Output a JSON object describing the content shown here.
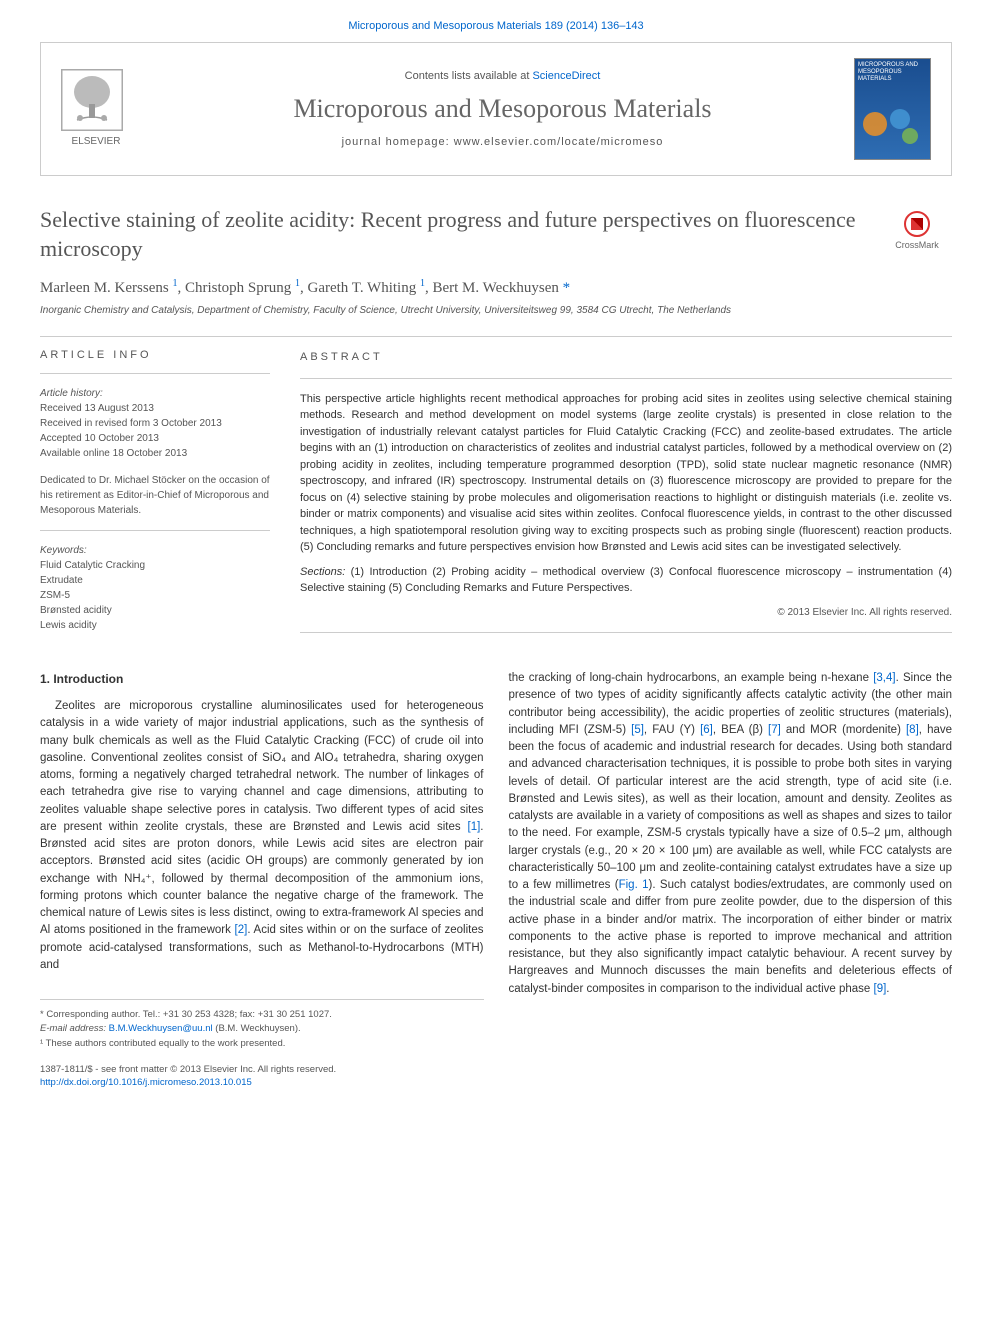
{
  "citation": "Microporous and Mesoporous Materials 189 (2014) 136–143",
  "header": {
    "contents_prefix": "Contents lists available at ",
    "contents_link": "ScienceDirect",
    "journal_name": "Microporous and Mesoporous Materials",
    "homepage_prefix": "journal homepage: ",
    "homepage_url": "www.elsevier.com/locate/micromeso",
    "publisher": "ELSEVIER",
    "cover_title": "MICROPOROUS AND MESOPOROUS MATERIALS"
  },
  "crossmark": "CrossMark",
  "title": "Selective staining of zeolite acidity: Recent progress and future perspectives on fluorescence microscopy",
  "authors_html": "Marleen M. Kerssens <sup>1</sup>, Christoph Sprung <sup>1</sup>, Gareth T. Whiting <sup>1</sup>, Bert M. Weckhuysen <span class='corr'>*</span>",
  "affiliation": "Inorganic Chemistry and Catalysis, Department of Chemistry, Faculty of Science, Utrecht University, Universiteitsweg 99, 3584 CG Utrecht, The Netherlands",
  "info": {
    "heading": "ARTICLE INFO",
    "history_label": "Article history:",
    "history": [
      "Received 13 August 2013",
      "Received in revised form 3 October 2013",
      "Accepted 10 October 2013",
      "Available online 18 October 2013"
    ],
    "dedication": "Dedicated to Dr. Michael Stöcker on the occasion of his retirement as Editor-in-Chief of Microporous and Mesoporous Materials.",
    "keywords_label": "Keywords:",
    "keywords": [
      "Fluid Catalytic Cracking",
      "Extrudate",
      "ZSM-5",
      "Brønsted acidity",
      "Lewis acidity"
    ]
  },
  "abstract": {
    "heading": "ABSTRACT",
    "text": "This perspective article highlights recent methodical approaches for probing acid sites in zeolites using selective chemical staining methods. Research and method development on model systems (large zeolite crystals) is presented in close relation to the investigation of industrially relevant catalyst particles for Fluid Catalytic Cracking (FCC) and zeolite-based extrudates. The article begins with an (1) introduction on characteristics of zeolites and industrial catalyst particles, followed by a methodical overview on (2) probing acidity in zeolites, including temperature programmed desorption (TPD), solid state nuclear magnetic resonance (NMR) spectroscopy, and infrared (IR) spectroscopy. Instrumental details on (3) fluorescence microscopy are provided to prepare for the focus on (4) selective staining by probe molecules and oligomerisation reactions to highlight or distinguish materials (i.e. zeolite vs. binder or matrix components) and visualise acid sites within zeolites. Confocal fluorescence yields, in contrast to the other discussed techniques, a high spatiotemporal resolution giving way to exciting prospects such as probing single (fluorescent) reaction products. (5) Concluding remarks and future perspectives envision how Brønsted and Lewis acid sites can be investigated selectively.",
    "sections_label": "Sections:",
    "sections": " (1) Introduction (2) Probing acidity – methodical overview (3) Confocal fluorescence microscopy – instrumentation (4) Selective staining (5) Concluding Remarks and Future Perspectives.",
    "copyright": "© 2013 Elsevier Inc. All rights reserved."
  },
  "body": {
    "heading": "1. Introduction",
    "col1": "Zeolites are microporous crystalline aluminosilicates used for heterogeneous catalysis in a wide variety of major industrial applications, such as the synthesis of many bulk chemicals as well as the Fluid Catalytic Cracking (FCC) of crude oil into gasoline. Conventional zeolites consist of SiO₄ and AlO₄ tetrahedra, sharing oxygen atoms, forming a negatively charged tetrahedral network. The number of linkages of each tetrahedra give rise to varying channel and cage dimensions, attributing to zeolites valuable shape selective pores in catalysis. Two different types of acid sites are present within zeolite crystals, these are Brønsted and Lewis acid sites [1]. Brønsted acid sites are proton donors, while Lewis acid sites are electron pair acceptors. Brønsted acid sites (acidic OH groups) are commonly generated by ion exchange with NH₄⁺, followed by thermal decomposition of the ammonium ions, forming protons which counter balance the negative charge of the framework. The chemical nature of Lewis sites is less distinct, owing to extra-framework Al species and Al atoms positioned in the framework [2]. Acid sites within or on the surface of zeolites promote acid-catalysed transformations, such as Methanol-to-Hydrocarbons (MTH) and",
    "col2": "the cracking of long-chain hydrocarbons, an example being n-hexane [3,4]. Since the presence of two types of acidity significantly affects catalytic activity (the other main contributor being accessibility), the acidic properties of zeolitic structures (materials), including MFI (ZSM-5) [5], FAU (Y) [6], BEA (β) [7] and MOR (mordenite) [8], have been the focus of academic and industrial research for decades. Using both standard and advanced characterisation techniques, it is possible to probe both sites in varying levels of detail. Of particular interest are the acid strength, type of acid site (i.e. Brønsted and Lewis sites), as well as their location, amount and density. Zeolites as catalysts are available in a variety of compositions as well as shapes and sizes to tailor to the need. For example, ZSM-5 crystals typically have a size of 0.5–2 μm, although larger crystals (e.g., 20 × 20 × 100 μm) are available as well, while FCC catalysts are characteristically 50–100 μm and zeolite-containing catalyst extrudates have a size up to a few millimetres (Fig. 1). Such catalyst bodies/extrudates, are commonly used on the industrial scale and differ from pure zeolite powder, due to the dispersion of this active phase in a binder and/or matrix. The incorporation of either binder or matrix components to the active phase is reported to improve mechanical and attrition resistance, but they also significantly impact catalytic behaviour. A recent survey by Hargreaves and Munnoch discusses the main benefits and deleterious effects of catalyst-binder composites in comparison to the individual active phase [9].",
    "refs_col1": {
      "r1": "[1]",
      "r2": "[2]"
    },
    "refs_col2": {
      "r34": "[3,4]",
      "r5": "[5]",
      "r6": "[6]",
      "r7": "[7]",
      "r8": "[8]",
      "fig1": "Fig. 1",
      "r9": "[9]"
    }
  },
  "footer": {
    "corr": "* Corresponding author. Tel.: +31 30 253 4328; fax: +31 30 251 1027.",
    "email_label": "E-mail address: ",
    "email": "B.M.Weckhuysen@uu.nl",
    "email_suffix": " (B.M. Weckhuysen).",
    "note1": "¹ These authors contributed equally to the work presented.",
    "issn": "1387-1811/$ - see front matter © 2013 Elsevier Inc. All rights reserved.",
    "doi": "http://dx.doi.org/10.1016/j.micromeso.2013.10.015"
  },
  "colors": {
    "link": "#0066cc",
    "text": "#333333",
    "muted": "#555555",
    "border": "#cccccc",
    "cover_bg": "#1a4d8f"
  }
}
